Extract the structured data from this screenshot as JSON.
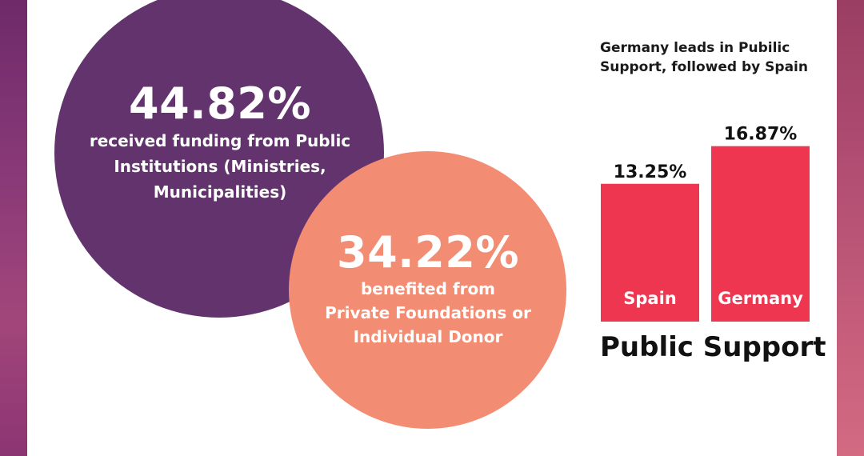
{
  "stats": {
    "public_institutions": {
      "percent": "44.82%",
      "description_lines": [
        "received funding from Public",
        "Institutions (Ministries,",
        "Municipalities)"
      ]
    },
    "private_foundations": {
      "percent": "34.22%",
      "description_lines": [
        "benefited from",
        "Private Foundations or",
        "Individual Donor"
      ]
    }
  },
  "chart_data": {
    "type": "bar",
    "title": "Public Support",
    "subtitle": "Germany leads in Pubilic Support, followed by Spain",
    "categories": [
      "Spain",
      "Germany"
    ],
    "values": [
      13.25,
      16.87
    ],
    "value_labels": [
      "13.25%",
      "16.87%"
    ],
    "ylim": [
      0,
      20
    ],
    "bar_color": "#ef3651"
  },
  "colors": {
    "purple_circle": "#63336e",
    "salmon_circle": "#f28c72"
  }
}
